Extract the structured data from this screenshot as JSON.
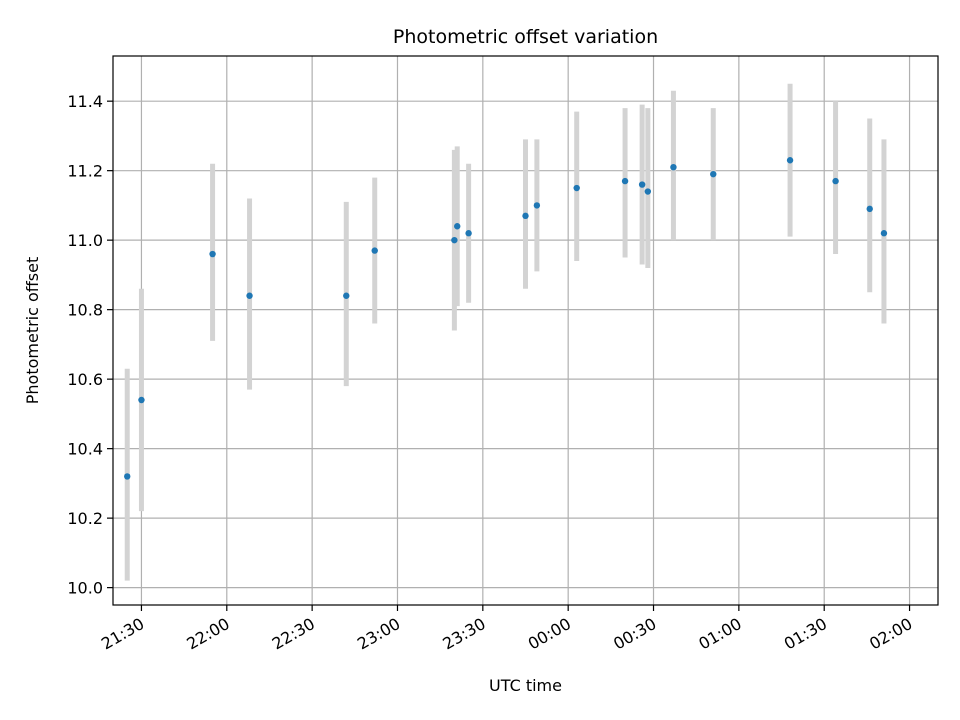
{
  "chart_data": {
    "type": "scatter",
    "title": "Photometric offset variation",
    "xlabel": "UTC time",
    "ylabel": "Photometric offset",
    "x_axis_type": "time",
    "x_range": [
      "21:20",
      "02:10"
    ],
    "x_ticks": [
      "21:30",
      "22:00",
      "22:30",
      "23:00",
      "23:30",
      "00:00",
      "00:30",
      "01:00",
      "01:30",
      "02:00"
    ],
    "ylim": [
      9.95,
      11.53
    ],
    "y_ticks": [
      10.0,
      10.2,
      10.4,
      10.6,
      10.8,
      11.0,
      11.2,
      11.4
    ],
    "grid": true,
    "colors": {
      "point": "#1f77b4",
      "errorbar": "#d3d3d3",
      "grid": "#b0b0b0"
    },
    "series": [
      {
        "points": [
          {
            "x": "21:25",
            "y": 10.32,
            "err_low": 10.02,
            "err_high": 10.63
          },
          {
            "x": "21:30",
            "y": 10.54,
            "err_low": 10.22,
            "err_high": 10.86
          },
          {
            "x": "21:55",
            "y": 10.96,
            "err_low": 10.71,
            "err_high": 11.22
          },
          {
            "x": "22:08",
            "y": 10.84,
            "err_low": 10.57,
            "err_high": 11.12
          },
          {
            "x": "22:42",
            "y": 10.84,
            "err_low": 10.58,
            "err_high": 11.11
          },
          {
            "x": "22:52",
            "y": 10.97,
            "err_low": 10.76,
            "err_high": 11.18
          },
          {
            "x": "23:20",
            "y": 11.0,
            "err_low": 10.74,
            "err_high": 11.26
          },
          {
            "x": "23:21",
            "y": 11.04,
            "err_low": 10.81,
            "err_high": 11.27
          },
          {
            "x": "23:25",
            "y": 11.02,
            "err_low": 10.82,
            "err_high": 11.22
          },
          {
            "x": "23:45",
            "y": 11.07,
            "err_low": 10.86,
            "err_high": 11.29
          },
          {
            "x": "23:49",
            "y": 11.1,
            "err_low": 10.91,
            "err_high": 11.29
          },
          {
            "x": "00:03",
            "y": 11.15,
            "err_low": 10.94,
            "err_high": 11.37
          },
          {
            "x": "00:20",
            "y": 11.17,
            "err_low": 10.95,
            "err_high": 11.38
          },
          {
            "x": "00:26",
            "y": 11.16,
            "err_low": 10.93,
            "err_high": 11.39
          },
          {
            "x": "00:28",
            "y": 11.14,
            "err_low": 10.92,
            "err_high": 11.38
          },
          {
            "x": "00:37",
            "y": 11.21,
            "err_low": 11.0,
            "err_high": 11.43
          },
          {
            "x": "00:51",
            "y": 11.19,
            "err_low": 11.0,
            "err_high": 11.38
          },
          {
            "x": "01:18",
            "y": 11.23,
            "err_low": 11.01,
            "err_high": 11.45
          },
          {
            "x": "01:34",
            "y": 11.17,
            "err_low": 10.96,
            "err_high": 11.4
          },
          {
            "x": "01:46",
            "y": 11.09,
            "err_low": 10.85,
            "err_high": 11.35
          },
          {
            "x": "01:51",
            "y": 11.02,
            "err_low": 10.76,
            "err_high": 11.29
          }
        ]
      }
    ]
  }
}
